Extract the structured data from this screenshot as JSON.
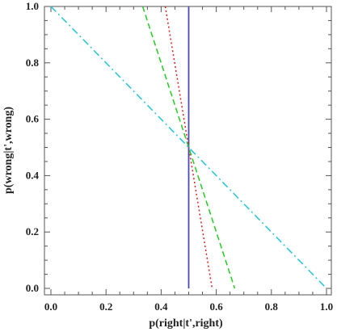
{
  "chart_data": {
    "type": "line",
    "title": "",
    "xlabel": "p(right|t',right)",
    "ylabel": "p(wrong|t',wrong)",
    "xlim": [
      0,
      1
    ],
    "ylim": [
      0,
      1
    ],
    "xticks": [
      "0.0",
      "0.2",
      "0.4",
      "0.6",
      "0.8",
      "1.0"
    ],
    "yticks": [
      "0.0",
      "0.2",
      "0.4",
      "0.6",
      "0.8",
      "1.0"
    ],
    "grid": false,
    "legend": "none",
    "series": [
      {
        "style": "solid",
        "color": "#4a4ab8",
        "x": [
          0.5,
          0.5
        ],
        "y": [
          0.0,
          1.0
        ]
      },
      {
        "style": "dotted",
        "color": "#e02020",
        "x": [
          0.415,
          0.585
        ],
        "y": [
          1.0,
          0.0
        ]
      },
      {
        "style": "dashed",
        "color": "#22cc22",
        "x": [
          0.333,
          0.667
        ],
        "y": [
          1.0,
          0.0
        ]
      },
      {
        "style": "dashdot",
        "color": "#22c4d8",
        "x": [
          0.0,
          1.0
        ],
        "y": [
          1.0,
          0.0
        ]
      }
    ]
  }
}
